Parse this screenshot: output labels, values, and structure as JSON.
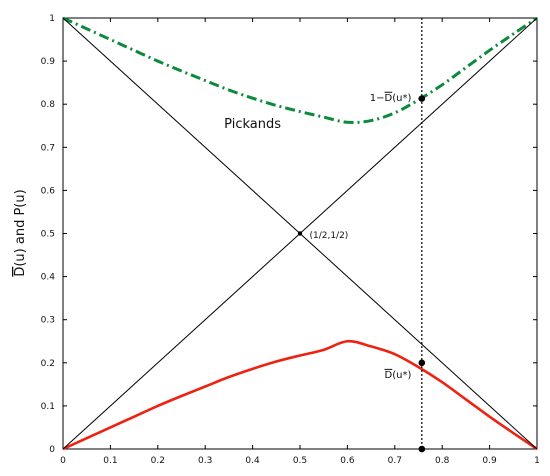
{
  "chart_data": {
    "type": "line",
    "title": "",
    "xlabel": "",
    "ylabel": "D(u) and P(u)",
    "ylabel_overline": "D",
    "ylabel_rest": "(u) and P(u)",
    "xlim": [
      0,
      1
    ],
    "ylim": [
      0,
      1
    ],
    "grid": false,
    "xticks": [
      0,
      0.1,
      0.2,
      0.3,
      0.4,
      0.5,
      0.6,
      0.7,
      0.8,
      0.9,
      1
    ],
    "xtick_labels": [
      "0",
      "0.1",
      "0.2",
      "0.3",
      "0.4",
      "0.5",
      "0.6",
      "0.7",
      "0.8",
      "0.9",
      "1"
    ],
    "yticks": [
      0,
      0.1,
      0.2,
      0.3,
      0.4,
      0.5,
      0.6,
      0.7,
      0.8,
      0.9,
      1
    ],
    "ytick_labels": [
      "0",
      "0.1",
      "0.2",
      "0.3",
      "0.4",
      "0.5",
      "0.6",
      "0.7",
      "0.8",
      "0.9",
      "1"
    ],
    "u_star": 0.757,
    "series": [
      {
        "color": "#0a8a3a",
        "style": "dash-dot",
        "x": [
          0,
          0.05,
          0.1,
          0.15,
          0.2,
          0.25,
          0.3,
          0.35,
          0.4,
          0.45,
          0.5,
          0.55,
          0.6,
          0.65,
          0.7,
          0.75,
          0.8,
          0.85,
          0.9,
          0.95,
          1
        ],
        "y": [
          1,
          0.975,
          0.95,
          0.925,
          0.9,
          0.877,
          0.855,
          0.833,
          0.814,
          0.797,
          0.783,
          0.77,
          0.758,
          0.762,
          0.78,
          0.81,
          0.845,
          0.885,
          0.925,
          0.963,
          1
        ]
      },
      {
        "color": "#ee2211",
        "style": "solid",
        "x": [
          0,
          0.05,
          0.1,
          0.15,
          0.2,
          0.25,
          0.3,
          0.35,
          0.4,
          0.45,
          0.5,
          0.55,
          0.6,
          0.65,
          0.7,
          0.75,
          0.8,
          0.85,
          0.9,
          0.95,
          1
        ],
        "y": [
          0,
          0.025,
          0.05,
          0.075,
          0.1,
          0.123,
          0.145,
          0.167,
          0.186,
          0.203,
          0.217,
          0.23,
          0.25,
          0.238,
          0.22,
          0.19,
          0.155,
          0.115,
          0.075,
          0.037,
          0
        ]
      },
      {
        "color": "#000000",
        "style": "thin",
        "x": [
          0,
          1
        ],
        "y": [
          0,
          1
        ]
      },
      {
        "color": "#000000",
        "style": "thin",
        "x": [
          0,
          1
        ],
        "y": [
          1,
          0
        ]
      }
    ],
    "points": [
      {
        "x": 0.757,
        "y": 0.813
      },
      {
        "x": 0.757,
        "y": 0.2
      },
      {
        "x": 0.757,
        "y": 0
      },
      {
        "x": 0.5,
        "y": 0.5
      }
    ],
    "annotations": {
      "pickands": {
        "text": "Pickands",
        "x": 0.34,
        "y": 0.745
      },
      "center": {
        "text": "(1/2,1/2)",
        "x": 0.52,
        "y": 0.49
      },
      "upper_prefix": "1−",
      "upper_d": "D",
      "upper_rest": "(u*)",
      "upper_pos": {
        "x": 0.735,
        "y": 0.808
      },
      "lower_d": "D",
      "lower_rest": "(u*)",
      "lower_pos": {
        "x": 0.735,
        "y": 0.165
      }
    }
  }
}
